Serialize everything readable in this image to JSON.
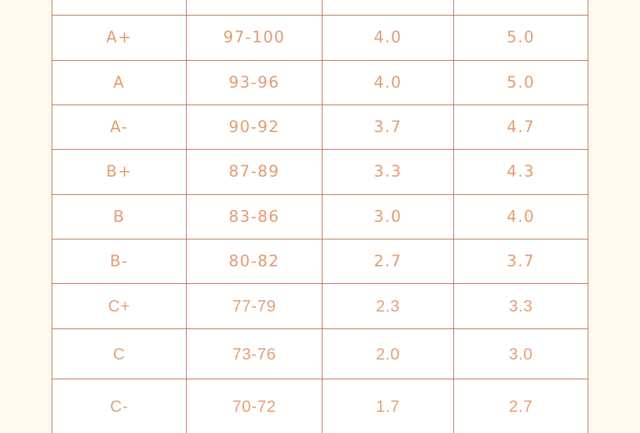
{
  "page": {
    "colors": {
      "page_background": "#FDF9EE",
      "cell_background": "#FFFFFF",
      "table_border": "#C56B4F",
      "text_upper_rows": "#E49C72",
      "text_lower_rows": "#E3A078"
    }
  },
  "table": {
    "description": "Letter grade conversion table, header row clipped at top of screenshot, last row clipped at bottom",
    "rows": [
      [
        "A+",
        "97-100",
        "4.0",
        "5.0"
      ],
      [
        "A",
        "93-96",
        "4.0",
        "5.0"
      ],
      [
        "A-",
        "90-92",
        "3.7",
        "4.7"
      ],
      [
        "B+",
        "87-89",
        "3.3",
        "4.3"
      ],
      [
        "B",
        "83-86",
        "3.0",
        "4.0"
      ],
      [
        "B-",
        "80-82",
        "2.7",
        "3.7"
      ],
      [
        "C+",
        "77-79",
        "2.3",
        "3.3"
      ],
      [
        "C",
        "73-76",
        "2.0",
        "3.0"
      ],
      [
        "C-",
        "70-72",
        "1.7",
        "2.7"
      ]
    ]
  }
}
